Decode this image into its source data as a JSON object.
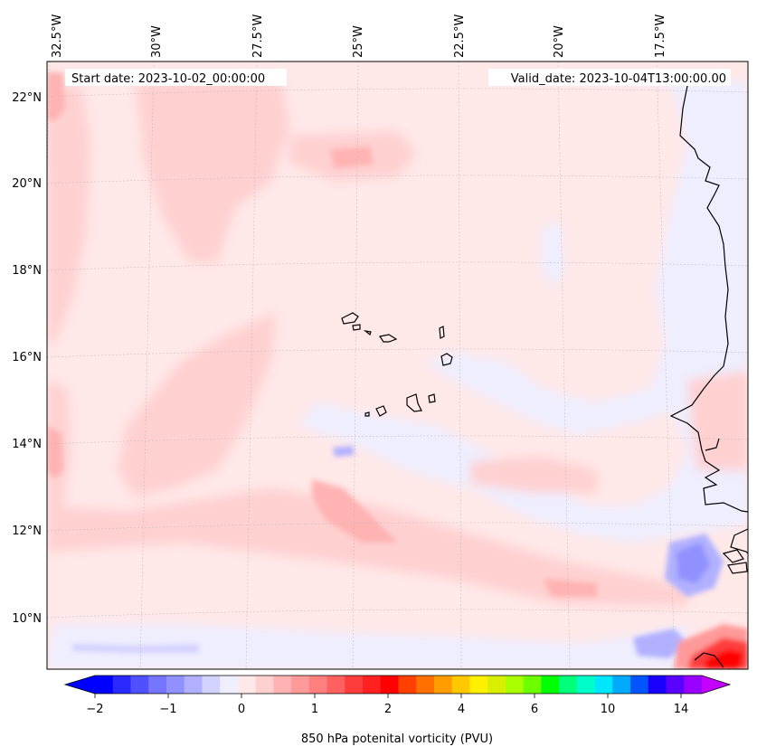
{
  "map": {
    "start_label": "Start date: 2023-10-02_00:00:00",
    "valid_label": "Valid_date: 2023-10-04T13:00:00.00",
    "lon_labels": [
      "32.5°W",
      "30°W",
      "27.5°W",
      "25°W",
      "22.5°W",
      "20°W",
      "17.5°W"
    ],
    "lat_labels": [
      "22°N",
      "20°N",
      "18°N",
      "16°N",
      "14°N",
      "12°N",
      "10°N"
    ],
    "gridlines": true,
    "field": "850 hPa potential vorticity"
  },
  "colorbar": {
    "label": "850 hPa potenital vorticity (PVU)",
    "ticks": [
      "−2",
      "−1",
      "0",
      "1",
      "2",
      "4",
      "6",
      "10",
      "14"
    ],
    "colors": [
      "#0000ff",
      "#2a2aff",
      "#5050ff",
      "#7575ff",
      "#9090ff",
      "#b0b0ff",
      "#d2d2ff",
      "#eeeeff",
      "#ffe8e8",
      "#ffd0d0",
      "#ffb3b3",
      "#ff9a9a",
      "#ff7f7f",
      "#ff6060",
      "#ff3c3c",
      "#ff2020",
      "#ff0000",
      "#ff4000",
      "#ff7000",
      "#ff9d00",
      "#ffc800",
      "#fff000",
      "#d8f000",
      "#a8ff00",
      "#6cff00",
      "#00ff00",
      "#00ff7a",
      "#00ffc8",
      "#00e6ff",
      "#00aaff",
      "#0055ff",
      "#1a00ff",
      "#5a00ff",
      "#9800ff"
    ],
    "under_color": "#0000ff",
    "over_color": "#c400ff"
  }
}
